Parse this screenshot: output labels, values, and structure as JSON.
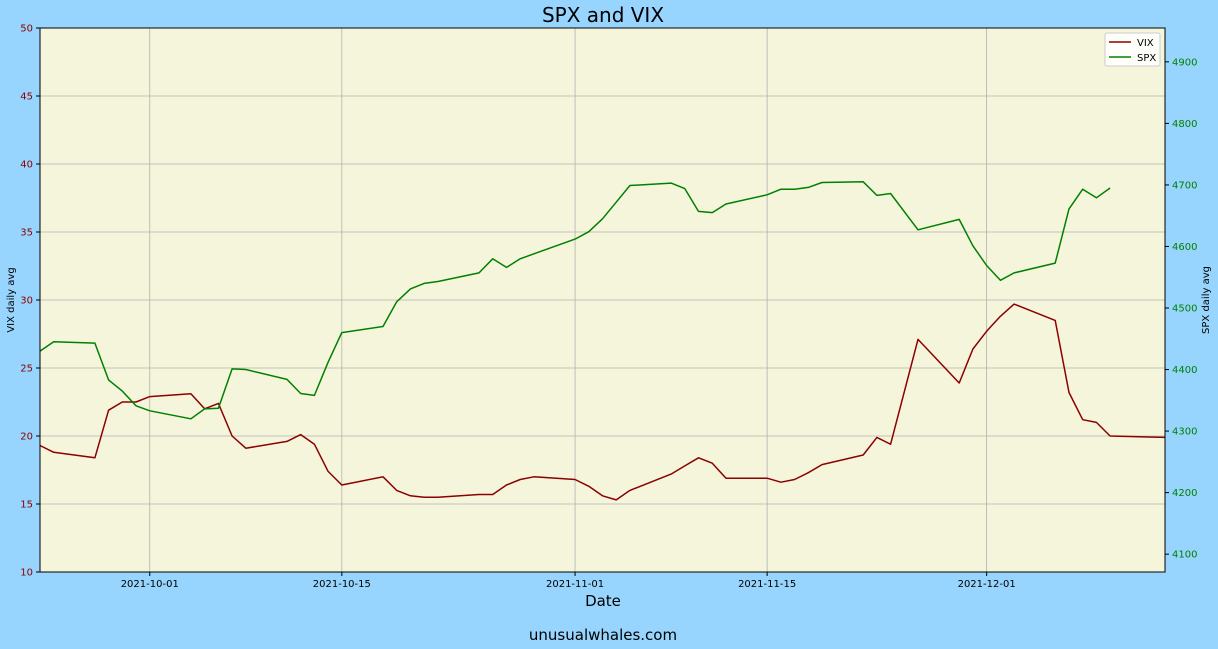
{
  "chart_data": {
    "type": "line",
    "title": "SPX and VIX",
    "xlabel": "Date",
    "ylabel_left": "VIX daily avg",
    "ylabel_right": "SPX daily avg",
    "x_ticks": [
      "2021-10-01",
      "2021-10-15",
      "2021-11-01",
      "2021-11-15",
      "2021-12-01"
    ],
    "y_left_ticks": [
      "10",
      "15",
      "20",
      "25",
      "30",
      "35",
      "40",
      "45",
      "50"
    ],
    "y_right_ticks": [
      "4100",
      "4200",
      "4300",
      "4400",
      "4500",
      "4600",
      "4700",
      "4800",
      "4900"
    ],
    "ylim_left": [
      10,
      50
    ],
    "ylim_right": [
      4071,
      4955
    ],
    "xlim": [
      "2021-09-23",
      "2021-12-14"
    ],
    "grid": true,
    "legend_position": "top-right",
    "series": [
      {
        "name": "VIX",
        "axis": "left",
        "color": "#8b0000",
        "points": [
          [
            "2021-09-23",
            19.3
          ],
          [
            "2021-09-24",
            18.8
          ],
          [
            "2021-09-27",
            18.4
          ],
          [
            "2021-09-28",
            21.9
          ],
          [
            "2021-09-29",
            22.5
          ],
          [
            "2021-09-30",
            22.5
          ],
          [
            "2021-10-01",
            22.9
          ],
          [
            "2021-10-04",
            23.1
          ],
          [
            "2021-10-05",
            22.0
          ],
          [
            "2021-10-06",
            22.4
          ],
          [
            "2021-10-07",
            20.0
          ],
          [
            "2021-10-08",
            19.1
          ],
          [
            "2021-10-11",
            19.6
          ],
          [
            "2021-10-12",
            20.1
          ],
          [
            "2021-10-13",
            19.4
          ],
          [
            "2021-10-14",
            17.4
          ],
          [
            "2021-10-15",
            16.4
          ],
          [
            "2021-10-18",
            17.0
          ],
          [
            "2021-10-19",
            16.0
          ],
          [
            "2021-10-20",
            15.6
          ],
          [
            "2021-10-21",
            15.5
          ],
          [
            "2021-10-22",
            15.5
          ],
          [
            "2021-10-25",
            15.7
          ],
          [
            "2021-10-26",
            15.7
          ],
          [
            "2021-10-27",
            16.4
          ],
          [
            "2021-10-28",
            16.8
          ],
          [
            "2021-10-29",
            17.0
          ],
          [
            "2021-11-01",
            16.8
          ],
          [
            "2021-11-02",
            16.3
          ],
          [
            "2021-11-03",
            15.6
          ],
          [
            "2021-11-04",
            15.3
          ],
          [
            "2021-11-05",
            16.0
          ],
          [
            "2021-11-08",
            17.2
          ],
          [
            "2021-11-09",
            17.8
          ],
          [
            "2021-11-10",
            18.4
          ],
          [
            "2021-11-11",
            18.0
          ],
          [
            "2021-11-12",
            16.9
          ],
          [
            "2021-11-15",
            16.9
          ],
          [
            "2021-11-16",
            16.6
          ],
          [
            "2021-11-17",
            16.8
          ],
          [
            "2021-11-18",
            17.3
          ],
          [
            "2021-11-19",
            17.9
          ],
          [
            "2021-11-22",
            18.6
          ],
          [
            "2021-11-23",
            19.9
          ],
          [
            "2021-11-24",
            19.4
          ],
          [
            "2021-11-26",
            27.1
          ],
          [
            "2021-11-29",
            23.9
          ],
          [
            "2021-11-30",
            26.4
          ],
          [
            "2021-12-01",
            27.7
          ],
          [
            "2021-12-02",
            28.8
          ],
          [
            "2021-12-03",
            29.7
          ],
          [
            "2021-12-06",
            28.5
          ],
          [
            "2021-12-07",
            23.2
          ],
          [
            "2021-12-08",
            21.2
          ],
          [
            "2021-12-09",
            21.0
          ],
          [
            "2021-12-10",
            20.0
          ],
          [
            "2021-12-14",
            19.9
          ]
        ]
      },
      {
        "name": "SPX",
        "axis": "right",
        "color": "#008000",
        "points": [
          [
            "2021-09-23",
            4430
          ],
          [
            "2021-09-24",
            4445
          ],
          [
            "2021-09-27",
            4443
          ],
          [
            "2021-09-28",
            4383
          ],
          [
            "2021-09-29",
            4365
          ],
          [
            "2021-09-30",
            4341
          ],
          [
            "2021-10-01",
            4333
          ],
          [
            "2021-10-04",
            4320
          ],
          [
            "2021-10-05",
            4336
          ],
          [
            "2021-10-06",
            4337
          ],
          [
            "2021-10-07",
            4401
          ],
          [
            "2021-10-08",
            4400
          ],
          [
            "2021-10-11",
            4384
          ],
          [
            "2021-10-12",
            4361
          ],
          [
            "2021-10-13",
            4358
          ],
          [
            "2021-10-14",
            4412
          ],
          [
            "2021-10-15",
            4460
          ],
          [
            "2021-10-18",
            4470
          ],
          [
            "2021-10-19",
            4510
          ],
          [
            "2021-10-20",
            4531
          ],
          [
            "2021-10-21",
            4540
          ],
          [
            "2021-10-22",
            4543
          ],
          [
            "2021-10-25",
            4557
          ],
          [
            "2021-10-26",
            4580
          ],
          [
            "2021-10-27",
            4566
          ],
          [
            "2021-10-28",
            4580
          ],
          [
            "2021-10-29",
            4588
          ],
          [
            "2021-11-01",
            4612
          ],
          [
            "2021-11-02",
            4624
          ],
          [
            "2021-11-03",
            4645
          ],
          [
            "2021-11-04",
            4672
          ],
          [
            "2021-11-05",
            4699
          ],
          [
            "2021-11-08",
            4703
          ],
          [
            "2021-11-09",
            4694
          ],
          [
            "2021-11-10",
            4657
          ],
          [
            "2021-11-11",
            4655
          ],
          [
            "2021-11-12",
            4669
          ],
          [
            "2021-11-15",
            4684
          ],
          [
            "2021-11-16",
            4693
          ],
          [
            "2021-11-17",
            4693
          ],
          [
            "2021-11-18",
            4696
          ],
          [
            "2021-11-19",
            4704
          ],
          [
            "2021-11-22",
            4705
          ],
          [
            "2021-11-23",
            4683
          ],
          [
            "2021-11-24",
            4686
          ],
          [
            "2021-11-26",
            4627
          ],
          [
            "2021-11-29",
            4644
          ],
          [
            "2021-11-30",
            4601
          ],
          [
            "2021-12-01",
            4569
          ],
          [
            "2021-12-02",
            4545
          ],
          [
            "2021-12-03",
            4557
          ],
          [
            "2021-12-06",
            4573
          ],
          [
            "2021-12-07",
            4661
          ],
          [
            "2021-12-08",
            4693
          ],
          [
            "2021-12-09",
            4679
          ],
          [
            "2021-12-10",
            4695
          ]
        ]
      }
    ]
  },
  "footer": {
    "text": "unusualwhales.com"
  },
  "colors": {
    "page_background": "#97d5ff",
    "plot_background": "#f5f5dc",
    "left_tick_color": "#8b0000",
    "right_tick_color": "#008000",
    "grid_color": "#b0b0b0"
  }
}
